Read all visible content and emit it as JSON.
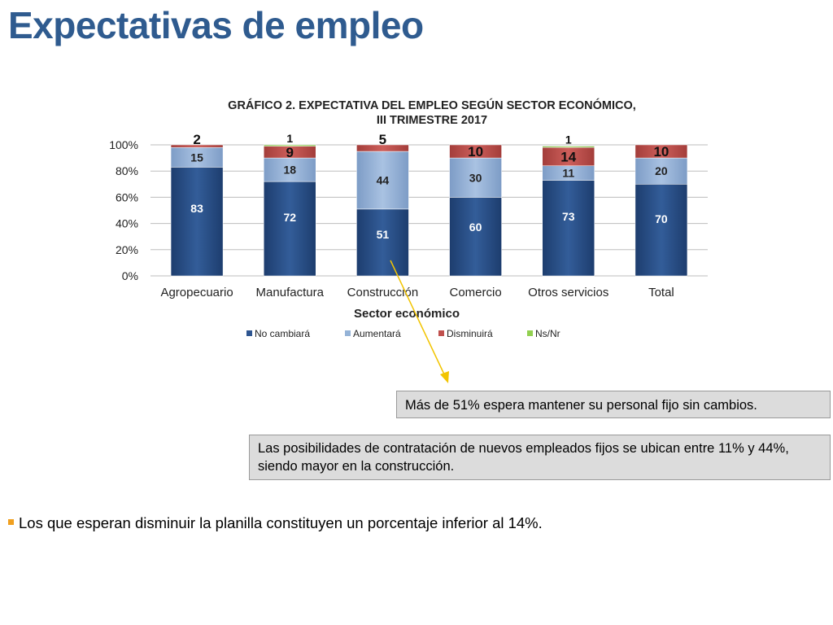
{
  "slide": {
    "title": "Expectativas de empleo",
    "callout_1": "Más de 51% espera mantener su personal fijo sin cambios.",
    "callout_2": "Las posibilidades de contratación de nuevos empleados fijos se ubican entre 11% y 44%, siendo mayor en la construcción.",
    "bullet": "Los que esperan disminuir la planilla constituyen un porcentaje inferior al 14%.",
    "bullet_color": "#f0a020",
    "title_color": "#2f5b8f",
    "arrow_color": "#f2c400",
    "arrow_icon": "arrow-down-right"
  },
  "chart_data": {
    "type": "bar",
    "stacked": true,
    "title_line1": "GRÁFICO 2. EXPECTATIVA DEL EMPLEO SEGÚN SECTOR ECONÓMICO,",
    "title_line2": "III TRIMESTRE 2017",
    "xlabel": "Sector económico",
    "ylabel": "",
    "categories": [
      "Agropecuario",
      "Manufactura",
      "Construcción",
      "Comercio",
      "Otros servicios",
      "Total"
    ],
    "ylim": [
      0,
      100
    ],
    "yticks": [
      "0%",
      "20%",
      "40%",
      "60%",
      "80%",
      "100%"
    ],
    "grid": true,
    "legend_position": "bottom",
    "series": [
      {
        "name": "No cambiará",
        "color": "#2e5590",
        "values": [
          83,
          72,
          51,
          60,
          73,
          70
        ],
        "labels": [
          "83",
          "72",
          "51",
          "60",
          "73",
          "70"
        ]
      },
      {
        "name": "Aumentará",
        "color": "#95b3d7",
        "values": [
          15,
          18,
          44,
          30,
          11,
          20
        ],
        "labels": [
          "15",
          "18",
          "44",
          "30",
          "11",
          "20"
        ]
      },
      {
        "name": "Disminuirá",
        "color": "#c0504d",
        "values": [
          2,
          9,
          5,
          10,
          14,
          10
        ],
        "labels": [
          "2",
          "9",
          "5",
          "10",
          "14",
          "10"
        ]
      },
      {
        "name": "Ns/Nr",
        "color": "#92d050",
        "values": [
          0,
          1,
          0,
          0,
          1,
          0
        ],
        "labels": [
          "",
          "1",
          "",
          "",
          "1",
          ""
        ]
      }
    ]
  }
}
